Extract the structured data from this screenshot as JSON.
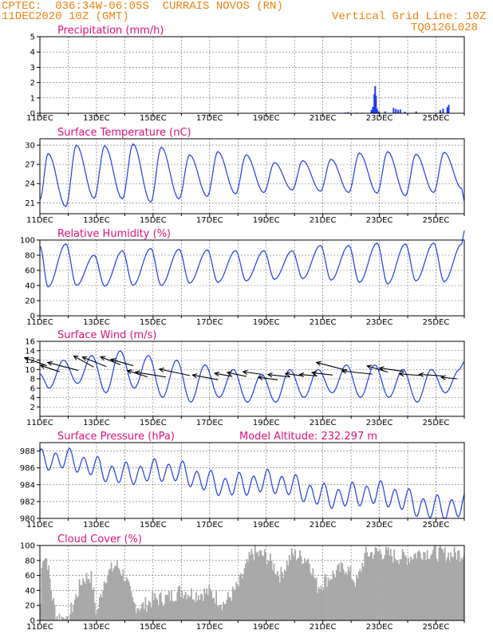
{
  "header": {
    "station": "CPTEC:  036:34W-06:05S  CURRAIS NOVOS (RN)",
    "date": "11DEC2020 10Z (GMT)",
    "grid_line": "Vertical Grid Line: 10Z",
    "code": "TQ0126L028"
  },
  "colors": {
    "header": "#f08010",
    "title": "#e0107a",
    "line": "#1e3ee8",
    "arrow": "#000000",
    "cloud": "#a8a8a8",
    "grid": "#666666"
  },
  "chart_data": [
    {
      "type": "bar",
      "title": "Precipitation (mm/h)",
      "color": "#1e3ee8",
      "ylim": [
        0,
        5
      ],
      "yticks": [
        "0",
        "1",
        "2",
        "3",
        "4",
        "5"
      ],
      "x_ticks": [
        "11DEC",
        "13DEC",
        "15DEC",
        "17DEC",
        "19DEC",
        "21DEC",
        "23DEC",
        "25DEC"
      ],
      "x_span_days": [
        0,
        15
      ],
      "bars": [
        {
          "day": 10.8,
          "value": 0.05
        },
        {
          "day": 10.9,
          "value": 0.08
        },
        {
          "day": 11.2,
          "value": 0.04
        },
        {
          "day": 11.9,
          "value": 0.1
        },
        {
          "day": 12.0,
          "value": 0.05
        },
        {
          "day": 12.2,
          "value": 0.12
        },
        {
          "day": 11.7,
          "value": 0.05
        },
        {
          "day": 11.4,
          "value": 0.03
        },
        {
          "day": 11.72,
          "value": 0.22
        },
        {
          "day": 11.77,
          "value": 0.42
        },
        {
          "day": 11.82,
          "value": 1.25
        },
        {
          "day": 11.85,
          "value": 1.78
        },
        {
          "day": 11.88,
          "value": 1.15
        },
        {
          "day": 11.92,
          "value": 0.3
        },
        {
          "day": 11.97,
          "value": 0.12
        },
        {
          "day": 12.5,
          "value": 0.35
        },
        {
          "day": 12.58,
          "value": 0.28
        },
        {
          "day": 12.66,
          "value": 0.22
        },
        {
          "day": 12.74,
          "value": 0.25
        },
        {
          "day": 12.9,
          "value": 0.1
        },
        {
          "day": 13.3,
          "value": 0.12
        },
        {
          "day": 14.15,
          "value": 0.2
        },
        {
          "day": 14.25,
          "value": 0.3
        },
        {
          "day": 14.4,
          "value": 0.4
        },
        {
          "day": 14.45,
          "value": 0.55
        }
      ]
    },
    {
      "type": "line",
      "title": "Surface Temperature (nC)",
      "color": "#1e3ee8",
      "ylim": [
        19.3,
        31
      ],
      "yticks": [
        "21",
        "24",
        "27",
        "30"
      ],
      "ytick_values": [
        21,
        24,
        27,
        30
      ],
      "x_ticks": [
        "11DEC",
        "13DEC",
        "15DEC",
        "17DEC",
        "19DEC",
        "21DEC",
        "23DEC",
        "25DEC"
      ],
      "diurnal": {
        "start": 21.5,
        "min_hour": 8,
        "max_hour": 17
      },
      "daily_max": [
        28.7,
        30.0,
        29.9,
        30.2,
        29.7,
        28.5,
        29.0,
        28.5,
        27.3,
        27.6,
        27.8,
        28.8,
        29.0,
        28.6,
        28.9,
        28.9
      ],
      "daily_min": [
        20.4,
        21.7,
        21.6,
        21.1,
        21.6,
        22.0,
        22.4,
        22.6,
        23.0,
        22.8,
        22.6,
        22.5,
        22.1,
        22.6,
        23.2,
        22.8
      ]
    },
    {
      "type": "line",
      "title": "Relative Humidity (%)",
      "color": "#1e3ee8",
      "ylim": [
        0,
        100
      ],
      "yticks": [
        "0",
        "20",
        "40",
        "60",
        "80",
        "100"
      ],
      "ytick_values": [
        0,
        20,
        40,
        60,
        80,
        100
      ],
      "x_ticks": [
        "11DEC",
        "13DEC",
        "15DEC",
        "17DEC",
        "19DEC",
        "21DEC",
        "23DEC",
        "25DEC"
      ],
      "diurnal": {
        "start": 92,
        "min_hour": 17,
        "max_hour": 8
      },
      "daily_max": [
        95,
        80,
        86,
        89,
        88,
        87,
        86,
        86,
        86,
        93,
        93,
        96,
        95,
        96,
        95,
        95
      ],
      "daily_min": [
        38,
        40,
        39,
        40,
        40,
        43,
        44,
        46,
        48,
        49,
        47,
        44,
        42,
        46,
        45,
        48
      ]
    },
    {
      "type": "line",
      "title": "Surface Wind (m/s)",
      "color": "#1e3ee8",
      "ylim": [
        0,
        16
      ],
      "yticks": [
        "2",
        "4",
        "6",
        "8",
        "10",
        "12",
        "14",
        "16"
      ],
      "ytick_values": [
        2,
        4,
        6,
        8,
        10,
        12,
        14,
        16
      ],
      "x_ticks": [
        "11DEC",
        "13DEC",
        "15DEC",
        "17DEC",
        "19DEC",
        "21DEC",
        "23DEC",
        "25DEC"
      ],
      "diurnal": {
        "start": 9,
        "min_hour": 18,
        "max_hour": 6
      },
      "daily_max": [
        12,
        13,
        14,
        13,
        12,
        11,
        10,
        9,
        10,
        10,
        11,
        11,
        10,
        10,
        10,
        10
      ],
      "daily_min": [
        6,
        7,
        5,
        6,
        4,
        3,
        4,
        3,
        3,
        4,
        5,
        4,
        4,
        3,
        5,
        6
      ],
      "vectors": [
        {
          "day": 0.25,
          "speed": 10.8,
          "dx": -28,
          "dy": -10
        },
        {
          "day": 0.7,
          "speed": 9.5,
          "dx": -24,
          "dy": -8
        },
        {
          "day": 1.35,
          "speed": 9.8,
          "dx": -38,
          "dy": -10
        },
        {
          "day": 1.9,
          "speed": 10.5,
          "dx": -25,
          "dy": -14
        },
        {
          "day": 2.35,
          "speed": 10.6,
          "dx": -30,
          "dy": -12
        },
        {
          "day": 2.85,
          "speed": 11.0,
          "dx": -25,
          "dy": -10
        },
        {
          "day": 3.3,
          "speed": 10.8,
          "dx": -28,
          "dy": -8
        },
        {
          "day": 3.8,
          "speed": 8.4,
          "dx": -25,
          "dy": -8
        },
        {
          "day": 4.45,
          "speed": 8.4,
          "dx": -38,
          "dy": -6
        },
        {
          "day": 5.3,
          "speed": 8.7,
          "dx": -38,
          "dy": -8
        },
        {
          "day": 6.3,
          "speed": 7.8,
          "dx": -32,
          "dy": -6
        },
        {
          "day": 6.8,
          "speed": 8.5,
          "dx": -22,
          "dy": -4
        },
        {
          "day": 7.3,
          "speed": 8.5,
          "dx": -24,
          "dy": -5
        },
        {
          "day": 7.8,
          "speed": 9.0,
          "dx": -22,
          "dy": -3
        },
        {
          "day": 8.4,
          "speed": 7.8,
          "dx": -24,
          "dy": -3
        },
        {
          "day": 8.85,
          "speed": 8.4,
          "dx": -28,
          "dy": -3
        },
        {
          "day": 9.3,
          "speed": 8.6,
          "dx": -22,
          "dy": -3
        },
        {
          "day": 9.8,
          "speed": 8.6,
          "dx": -22,
          "dy": -2
        },
        {
          "day": 10.35,
          "speed": 8.8,
          "dx": -26,
          "dy": -3
        },
        {
          "day": 10.85,
          "speed": 9.8,
          "dx": -38,
          "dy": -10
        },
        {
          "day": 11.75,
          "speed": 9.0,
          "dx": -38,
          "dy": -4
        },
        {
          "day": 12.3,
          "speed": 9.4,
          "dx": -26,
          "dy": -8
        },
        {
          "day": 12.85,
          "speed": 9.6,
          "dx": -30,
          "dy": -4
        },
        {
          "day": 13.5,
          "speed": 8.7,
          "dx": -28,
          "dy": -2
        },
        {
          "day": 14.25,
          "speed": 8.6,
          "dx": -30,
          "dy": -2
        },
        {
          "day": 14.75,
          "speed": 8.0,
          "dx": -20,
          "dy": -2
        }
      ]
    },
    {
      "type": "line",
      "title": "Surface Pressure (hPa)",
      "annotation": "Model Altitude: 232.297 m",
      "color": "#1e3ee8",
      "ylim": [
        980,
        989
      ],
      "yticks": [
        "980",
        "982",
        "984",
        "986",
        "988"
      ],
      "ytick_values": [
        980,
        982,
        984,
        986,
        988
      ],
      "x_ticks": [
        "11DEC",
        "13DEC",
        "15DEC",
        "17DEC",
        "19DEC",
        "21DEC",
        "23DEC",
        "25DEC"
      ],
      "semidiurnal": {
        "base_start": 986.8,
        "base_end": 981.3,
        "amp_start": 1.1,
        "amp_end": 1.3
      }
    },
    {
      "type": "area",
      "title": "Cloud Cover (%)",
      "color": "#a8a8a8",
      "ylim": [
        0,
        100
      ],
      "yticks": [
        "0",
        "20",
        "40",
        "60",
        "80",
        "100"
      ],
      "ytick_values": [
        0,
        20,
        40,
        60,
        80,
        100
      ],
      "x_ticks": [
        "11DEC",
        "13DEC",
        "15DEC",
        "17DEC",
        "19DEC",
        "21DEC",
        "23DEC",
        "25DEC"
      ],
      "profile": [
        {
          "day": 0.0,
          "value": 0
        },
        {
          "day": 0.08,
          "value": 88
        },
        {
          "day": 0.25,
          "value": 82
        },
        {
          "day": 0.45,
          "value": 28
        },
        {
          "day": 0.6,
          "value": 6
        },
        {
          "day": 1.0,
          "value": 3
        },
        {
          "day": 1.5,
          "value": 55
        },
        {
          "day": 1.8,
          "value": 60
        },
        {
          "day": 2.0,
          "value": 8
        },
        {
          "day": 2.3,
          "value": 58
        },
        {
          "day": 2.7,
          "value": 75
        },
        {
          "day": 3.0,
          "value": 60
        },
        {
          "day": 3.3,
          "value": 22
        },
        {
          "day": 3.6,
          "value": 18
        },
        {
          "day": 4.0,
          "value": 28
        },
        {
          "day": 4.5,
          "value": 30
        },
        {
          "day": 5.0,
          "value": 40
        },
        {
          "day": 5.5,
          "value": 35
        },
        {
          "day": 6.0,
          "value": 38
        },
        {
          "day": 6.5,
          "value": 22
        },
        {
          "day": 7.0,
          "value": 45
        },
        {
          "day": 7.5,
          "value": 90
        },
        {
          "day": 8.0,
          "value": 86
        },
        {
          "day": 8.5,
          "value": 60
        },
        {
          "day": 8.9,
          "value": 88
        },
        {
          "day": 9.5,
          "value": 82
        },
        {
          "day": 9.8,
          "value": 45
        },
        {
          "day": 10.3,
          "value": 60
        },
        {
          "day": 10.8,
          "value": 72
        },
        {
          "day": 11.2,
          "value": 50
        },
        {
          "day": 11.5,
          "value": 88
        },
        {
          "day": 12.0,
          "value": 92
        },
        {
          "day": 12.5,
          "value": 86
        },
        {
          "day": 13.0,
          "value": 84
        },
        {
          "day": 13.5,
          "value": 92
        },
        {
          "day": 14.0,
          "value": 90
        },
        {
          "day": 14.5,
          "value": 88
        },
        {
          "day": 15.0,
          "value": 90
        }
      ]
    }
  ]
}
